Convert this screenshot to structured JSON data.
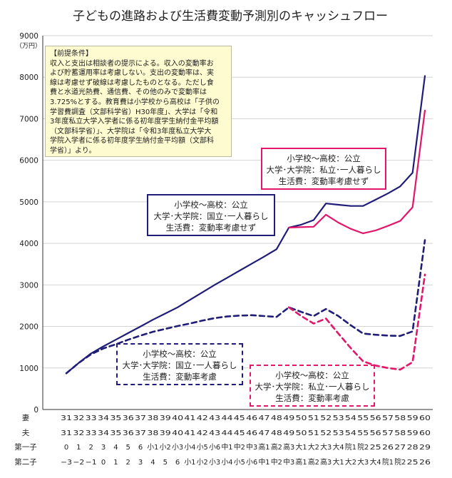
{
  "chart_data": {
    "type": "line",
    "title": "子どもの進路および生活費変動予測別のキャッシュフロー",
    "ylabel": "（万円）",
    "ylim": [
      0,
      9000
    ],
    "yticks": [
      0,
      1000,
      2000,
      3000,
      4000,
      5000,
      6000,
      7000,
      8000,
      9000
    ],
    "rows": [
      {
        "label": "妻",
        "values": [
          "31",
          "32",
          "33",
          "34",
          "35",
          "36",
          "37",
          "38",
          "39",
          "40",
          "41",
          "42",
          "43",
          "44",
          "45",
          "46",
          "47",
          "48",
          "49",
          "50",
          "51",
          "52",
          "53",
          "54",
          "55",
          "56",
          "57",
          "58",
          "59",
          "60"
        ]
      },
      {
        "label": "夫",
        "values": [
          "31",
          "32",
          "33",
          "34",
          "35",
          "36",
          "37",
          "38",
          "39",
          "40",
          "41",
          "42",
          "43",
          "44",
          "45",
          "46",
          "47",
          "48",
          "49",
          "50",
          "51",
          "52",
          "53",
          "54",
          "55",
          "56",
          "57",
          "58",
          "59",
          "60"
        ]
      },
      {
        "label": "第一子",
        "values": [
          "0",
          "1",
          "2",
          "3",
          "4",
          "5",
          "6",
          "小1",
          "小2",
          "小3",
          "小4",
          "小5",
          "小6",
          "中1",
          "中2",
          "中3",
          "高1",
          "高2",
          "高3",
          "大1",
          "大2",
          "大3",
          "大4",
          "院1",
          "院2",
          "25",
          "26",
          "27",
          "28",
          "29"
        ]
      },
      {
        "label": "第二子",
        "values": [
          "−3",
          "−2",
          "−1",
          "0",
          "1",
          "2",
          "3",
          "4",
          "5",
          "6",
          "小1",
          "小2",
          "小3",
          "小4",
          "小5",
          "小6",
          "中1",
          "中2",
          "中3",
          "高1",
          "高2",
          "高3",
          "大1",
          "大2",
          "大3",
          "大4",
          "院1",
          "院2",
          "25",
          "26"
        ]
      }
    ],
    "series": [
      {
        "color": "#1f1d77",
        "dash": false,
        "values": [
          870,
          1120,
          1350,
          1520,
          1680,
          1840,
          2000,
          2160,
          2310,
          2460,
          2640,
          2820,
          3000,
          3170,
          3340,
          3510,
          3680,
          3860,
          4380,
          4450,
          4560,
          4960,
          4930,
          4900,
          4900,
          5050,
          5200,
          5370,
          5700,
          8030
        ]
      },
      {
        "color": "#e2166b",
        "dash": false,
        "start_index": 18,
        "values": [
          4380,
          4390,
          4400,
          4690,
          4500,
          4350,
          4240,
          4310,
          4420,
          4540,
          4870,
          7200
        ]
      },
      {
        "color": "#1f1d77",
        "dash": true,
        "values": [
          870,
          1120,
          1330,
          1470,
          1570,
          1680,
          1780,
          1870,
          1940,
          2010,
          2070,
          2140,
          2200,
          2240,
          2260,
          2270,
          2250,
          2230,
          2460,
          2350,
          2250,
          2420,
          2250,
          2030,
          1830,
          1800,
          1780,
          1770,
          1880,
          4080
        ]
      },
      {
        "color": "#e2166b",
        "dash": true,
        "start_index": 18,
        "values": [
          2460,
          2250,
          2070,
          2190,
          1830,
          1480,
          1160,
          1060,
          1000,
          960,
          1140,
          3250
        ]
      }
    ]
  },
  "premise": {
    "heading": "【前提条件】",
    "lines": [
      "収入と支出は相談者の提示による。収入の変動率お",
      "よび貯蓄運用率は考慮しない。支出の変動率は、実",
      "線は考慮せず破線は考慮したものとなる。ただし食",
      "費と水道光熱費、通信費、その他のみで変動率は",
      "3.725%とする。教育費は小学校から高校は「子供の",
      "学習費調査（文部科学省）H30年度」、大学は「令和",
      "3年度私立大学入学者に係る初年度学生納付金平均額",
      "（文部科学省）」、大学院は「令和3年度私立大学大",
      "学院入学者に係る初年度学生納付金平均額（文部科",
      "学省）」より。"
    ]
  },
  "annotations": {
    "pink_solid": [
      "小学校～高校：公立",
      "大学･大学院：私立･一人暮らし",
      "生活費：変動率考慮せず"
    ],
    "navy_solid": [
      "小学校～高校：公立",
      "大学･大学院：国立･一人暮らし",
      "生活費：変動率考慮せず"
    ],
    "navy_dashed": [
      "小学校～高校：公立",
      "大学･大学院：国立･一人暮らし",
      "生活費：変動率考慮"
    ],
    "pink_dashed": [
      "小学校～高校：公立",
      "大学･大学院：私立･一人暮らし",
      "生活費：変動率考慮"
    ]
  }
}
